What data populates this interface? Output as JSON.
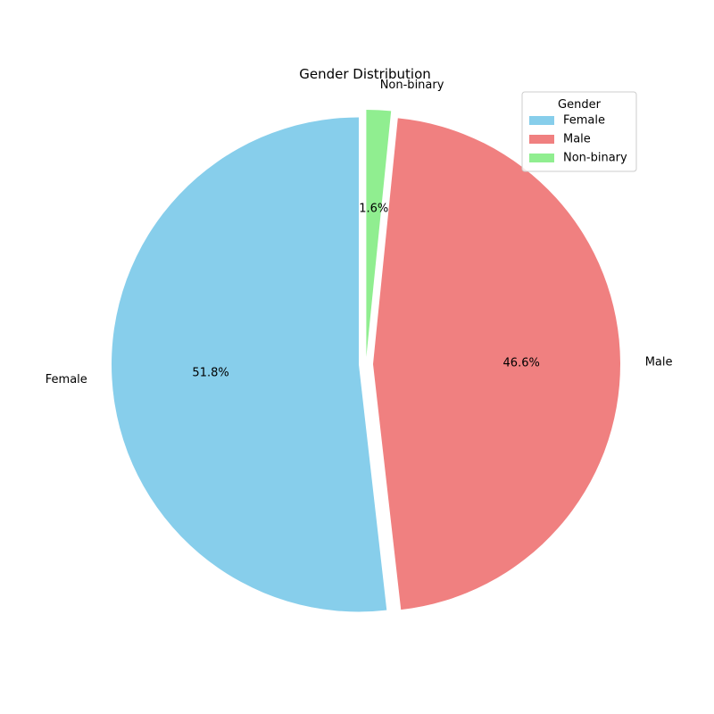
{
  "chart_data": {
    "type": "pie",
    "title": "Gender Distribution",
    "slices": [
      {
        "label": "Female",
        "value": 51.8,
        "pct_label": "51.8%",
        "color": "#87CEEB"
      },
      {
        "label": "Male",
        "value": 46.6,
        "pct_label": "46.6%",
        "color": "#F08080"
      },
      {
        "label": "Non-binary",
        "value": 1.6,
        "pct_label": "1.6%",
        "color": "#90EE90"
      }
    ],
    "legend": {
      "title": "Gender",
      "placement": "top-right",
      "entries": [
        "Female",
        "Male",
        "Non-binary"
      ]
    },
    "start_angle_deg": 90,
    "direction": "counterclockwise",
    "exploded": true
  }
}
